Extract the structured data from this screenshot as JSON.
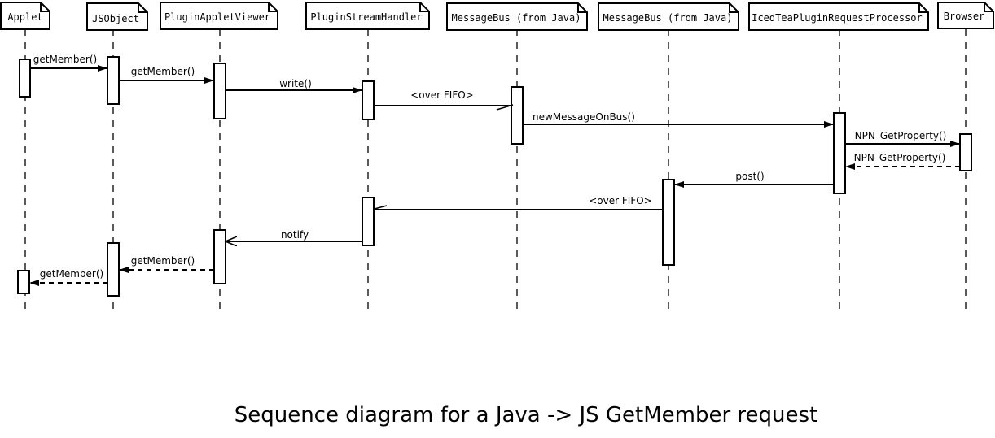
{
  "participants": [
    "Applet",
    "JSObject",
    "PluginAppletViewer",
    "PluginStreamHandler",
    "MessageBus (from Java)",
    "MessageBus (from Java)",
    "IcedTeaPluginRequestProcessor",
    "Browser"
  ],
  "messages": [
    {
      "label": "getMember()",
      "from": "Applet",
      "to": "JSObject",
      "style": "sync"
    },
    {
      "label": "getMember()",
      "from": "JSObject",
      "to": "PluginAppletViewer",
      "style": "sync"
    },
    {
      "label": "write()",
      "from": "PluginAppletViewer",
      "to": "PluginStreamHandler",
      "style": "sync"
    },
    {
      "label": "<over FIFO>",
      "from": "PluginStreamHandler",
      "to": "MessageBus (from Java)",
      "style": "async"
    },
    {
      "label": "newMessageOnBus()",
      "from": "MessageBus (from Java)",
      "to": "IcedTeaPluginRequestProcessor",
      "style": "sync"
    },
    {
      "label": "NPN_GetProperty()",
      "from": "IcedTeaPluginRequestProcessor",
      "to": "Browser",
      "style": "sync"
    },
    {
      "label": "NPN_GetProperty()",
      "from": "Browser",
      "to": "IcedTeaPluginRequestProcessor",
      "style": "return"
    },
    {
      "label": "post()",
      "from": "IcedTeaPluginRequestProcessor",
      "to": "MessageBus (from Java)",
      "style": "sync"
    },
    {
      "label": "<over FIFO>",
      "from": "MessageBus (from Java)",
      "to": "PluginStreamHandler",
      "style": "async"
    },
    {
      "label": "notify",
      "from": "PluginStreamHandler",
      "to": "PluginAppletViewer",
      "style": "open"
    },
    {
      "label": "getMember()",
      "from": "PluginAppletViewer",
      "to": "JSObject",
      "style": "return"
    },
    {
      "label": "getMember()",
      "from": "JSObject",
      "to": "Applet",
      "style": "return"
    }
  ],
  "title": "Sequence diagram for a Java -> JS GetMember request"
}
